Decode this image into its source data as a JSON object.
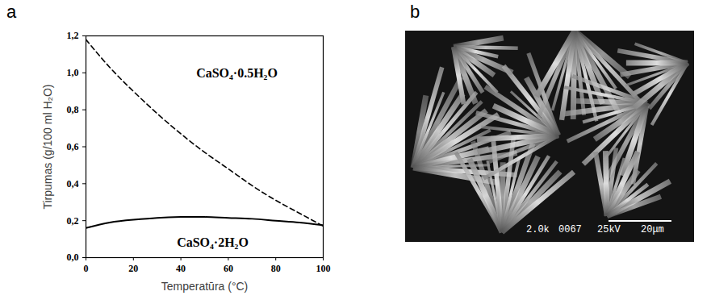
{
  "chart_data": {
    "type": "line",
    "xlabel": "Temperatūra (°C)",
    "ylabel": "Tirpumas (g/100 ml H₂O)",
    "x": [
      0,
      10,
      20,
      30,
      40,
      50,
      60,
      70,
      80,
      90,
      100
    ],
    "series": [
      {
        "name": "CaSO₄·0.5H₂O",
        "color": "#000000",
        "line_style": "dashed",
        "values": [
          1.18,
          1.03,
          0.9,
          0.78,
          0.67,
          0.57,
          0.48,
          0.39,
          0.31,
          0.24,
          0.17
        ]
      },
      {
        "name": "CaSO₄·2H₂O",
        "color": "#000000",
        "line_style": "solid",
        "values": [
          0.16,
          0.19,
          0.205,
          0.215,
          0.22,
          0.22,
          0.215,
          0.21,
          0.2,
          0.19,
          0.175
        ]
      }
    ],
    "xlim": [
      0,
      100
    ],
    "xticks": [
      0,
      20,
      40,
      60,
      80,
      100
    ],
    "ylim": [
      0,
      1.2
    ],
    "yticks": [
      {
        "value": 0,
        "label": "0,0"
      },
      {
        "value": 0.2,
        "label": "0,2"
      },
      {
        "value": 0.4,
        "label": "0,4"
      },
      {
        "value": 0.6,
        "label": "0,6"
      },
      {
        "value": 0.8,
        "label": "0,8"
      },
      {
        "value": 1.0,
        "label": "1,0"
      },
      {
        "value": 1.2,
        "label": "1,2"
      }
    ],
    "grid": false
  },
  "panels": [
    "a",
    "b"
  ],
  "image": {
    "labels": [
      "2.0k",
      "0067",
      "25kV",
      "20μm"
    ]
  }
}
